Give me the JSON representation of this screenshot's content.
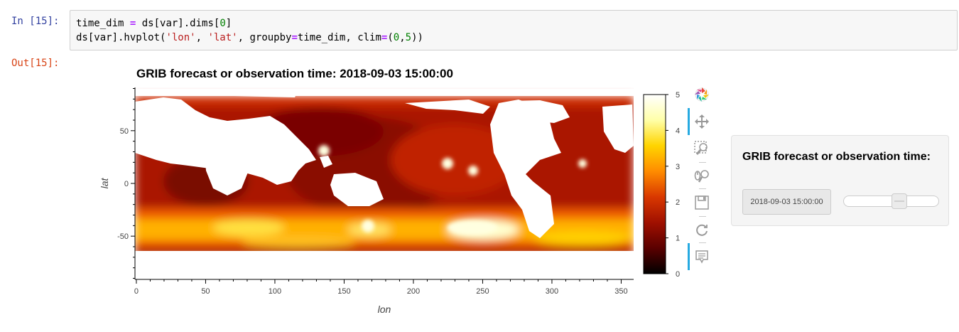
{
  "cell": {
    "in_prompt": "In [15]:",
    "out_prompt": "Out[15]:",
    "code_lines": [
      [
        {
          "t": "time_dim ",
          "c": ""
        },
        {
          "t": "=",
          "c": "tok-eq"
        },
        {
          "t": " ds[var].dims[",
          "c": ""
        },
        {
          "t": "0",
          "c": "tok-num"
        },
        {
          "t": "]",
          "c": ""
        }
      ],
      [
        {
          "t": "ds[var].hvplot(",
          "c": ""
        },
        {
          "t": "'lon'",
          "c": "tok-str"
        },
        {
          "t": ", ",
          "c": ""
        },
        {
          "t": "'lat'",
          "c": "tok-str"
        },
        {
          "t": ", groupby",
          "c": ""
        },
        {
          "t": "=",
          "c": "tok-eq"
        },
        {
          "t": "time_dim, clim",
          "c": ""
        },
        {
          "t": "=",
          "c": "tok-eq"
        },
        {
          "t": "(",
          "c": ""
        },
        {
          "t": "0",
          "c": "tok-num"
        },
        {
          "t": ",",
          "c": ""
        },
        {
          "t": "5",
          "c": "tok-num"
        },
        {
          "t": "))",
          "c": ""
        }
      ]
    ]
  },
  "chart_data": {
    "type": "heatmap",
    "title": "GRIB forecast or observation time: 2018-09-03 15:00:00",
    "xlabel": "lon",
    "ylabel": "lat",
    "xlim": [
      -1,
      359
    ],
    "ylim": [
      -91,
      91
    ],
    "x_ticks": [
      0,
      50,
      100,
      150,
      200,
      250,
      300,
      350
    ],
    "y_ticks": [
      50,
      0,
      -50
    ],
    "clim": [
      0,
      5
    ],
    "colorbar_ticks": [
      0,
      1,
      2,
      3,
      4,
      5
    ],
    "colormap": "fire",
    "colormap_stops": [
      "#000000",
      "#5a0000",
      "#a01000",
      "#d93800",
      "#ff8c00",
      "#ffd400",
      "#ffffa8",
      "#ffffff"
    ],
    "nodata_color": "#ffffff"
  },
  "toolbar": {
    "tools": [
      "bokeh-logo-icon",
      "pan-icon",
      "box-zoom-icon",
      "wheel-zoom-icon",
      "save-icon",
      "reset-icon",
      "hover-icon"
    ]
  },
  "widget": {
    "title": "GRIB forecast or observation time:",
    "value": "2018-09-03 15:00:00",
    "slider_fraction": 0.6
  },
  "colors": {
    "in_prompt": "#303f9f",
    "out_prompt": "#d84315",
    "tool_active": "#26aae1"
  }
}
